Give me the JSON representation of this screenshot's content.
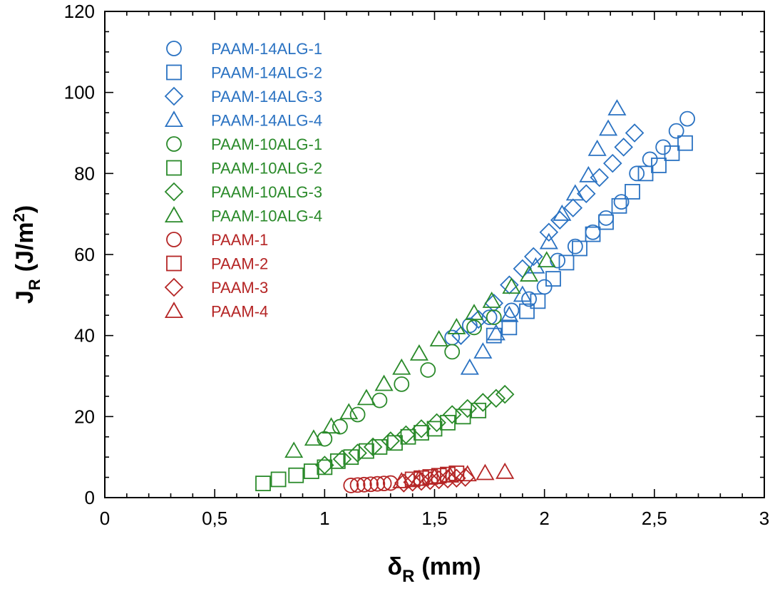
{
  "chart_data": {
    "type": "scatter",
    "xlabel": {
      "main": "δ",
      "sub": "R",
      "unit": "(mm)"
    },
    "ylabel": {
      "main": "J",
      "sub": "R",
      "unit": "(J/m",
      "sup": "2",
      "close": ")"
    },
    "xlim": [
      0,
      3
    ],
    "ylim": [
      0,
      120
    ],
    "x_ticks": [
      0,
      0.5,
      1,
      1.5,
      2,
      2.5,
      3
    ],
    "x_tick_labels": [
      "0",
      "0,5",
      "1",
      "1,5",
      "2",
      "2,5",
      "3"
    ],
    "y_ticks": [
      0,
      20,
      40,
      60,
      80,
      100,
      120
    ],
    "y_tick_labels": [
      "0",
      "20",
      "40",
      "60",
      "80",
      "100",
      "120"
    ],
    "grid": false,
    "legend_position": "top-left",
    "series": [
      {
        "name": "PAAM-14ALG-1",
        "marker": "circle",
        "color": "#2a72c2",
        "x": [
          1.58,
          1.66,
          1.75,
          1.85,
          1.93,
          2.0,
          2.06,
          2.14,
          2.22,
          2.28,
          2.35,
          2.42,
          2.48,
          2.54,
          2.6,
          2.65
        ],
        "y": [
          39.5,
          42.5,
          44.5,
          46.2,
          49.0,
          52.0,
          58.5,
          62.0,
          65.5,
          69.0,
          73.0,
          80.0,
          83.5,
          86.5,
          90.5,
          93.5
        ]
      },
      {
        "name": "PAAM-14ALG-2",
        "marker": "square",
        "color": "#2a72c2",
        "x": [
          1.77,
          1.84,
          1.92,
          1.97,
          2.04,
          2.1,
          2.16,
          2.22,
          2.28,
          2.34,
          2.4,
          2.46,
          2.52,
          2.58,
          2.64
        ],
        "y": [
          40.0,
          42.0,
          46.0,
          48.5,
          54.0,
          58.0,
          61.5,
          65.0,
          68.0,
          72.0,
          75.5,
          80.0,
          82.0,
          85.0,
          87.5
        ]
      },
      {
        "name": "PAAM-14ALG-3",
        "marker": "diamond",
        "color": "#2a72c2",
        "x": [
          1.62,
          1.7,
          1.77,
          1.84,
          1.9,
          1.95,
          2.02,
          2.07,
          2.13,
          2.19,
          2.25,
          2.31,
          2.36,
          2.41
        ],
        "y": [
          40.0,
          44.0,
          48.0,
          52.5,
          56.5,
          59.5,
          65.5,
          68.5,
          71.5,
          75.0,
          79.0,
          82.5,
          86.5,
          90.0
        ]
      },
      {
        "name": "PAAM-14ALG-4",
        "marker": "triangle",
        "color": "#2a72c2",
        "x": [
          1.66,
          1.72,
          1.78,
          1.84,
          1.9,
          1.96,
          2.02,
          2.08,
          2.14,
          2.2,
          2.24,
          2.29,
          2.33
        ],
        "y": [
          32.0,
          36.0,
          40.5,
          45.0,
          50.0,
          57.0,
          63.0,
          70.0,
          75.0,
          79.5,
          86.0,
          91.0,
          96.0
        ]
      },
      {
        "name": "PAAM-10ALG-1",
        "marker": "circle",
        "color": "#2a8a2a",
        "x": [
          1.0,
          1.07,
          1.15,
          1.25,
          1.35,
          1.47,
          1.58,
          1.68,
          1.77
        ],
        "y": [
          14.5,
          17.5,
          20.5,
          24.0,
          28.0,
          31.5,
          36.0,
          42.0,
          44.5
        ]
      },
      {
        "name": "PAAM-10ALG-2",
        "marker": "square",
        "color": "#2a8a2a",
        "x": [
          0.72,
          0.79,
          0.87,
          0.94,
          1.0,
          1.06,
          1.12,
          1.19,
          1.25,
          1.32,
          1.38,
          1.44,
          1.5,
          1.56,
          1.63,
          1.7
        ],
        "y": [
          3.5,
          4.5,
          5.5,
          6.5,
          7.5,
          9.0,
          10.0,
          11.5,
          12.5,
          13.5,
          15.0,
          16.0,
          17.0,
          18.5,
          20.0,
          21.5
        ]
      },
      {
        "name": "PAAM-10ALG-3",
        "marker": "diamond",
        "color": "#2a8a2a",
        "x": [
          1.0,
          1.08,
          1.15,
          1.22,
          1.3,
          1.37,
          1.44,
          1.51,
          1.58,
          1.65,
          1.72,
          1.78,
          1.82
        ],
        "y": [
          8.0,
          9.5,
          11.0,
          12.5,
          14.0,
          15.5,
          17.0,
          18.5,
          20.5,
          22.0,
          23.5,
          24.5,
          25.5
        ]
      },
      {
        "name": "PAAM-10ALG-4",
        "marker": "triangle",
        "color": "#2a8a2a",
        "x": [
          0.86,
          0.95,
          1.03,
          1.11,
          1.19,
          1.27,
          1.35,
          1.43,
          1.52,
          1.6,
          1.68,
          1.76,
          1.85,
          1.93,
          2.01
        ],
        "y": [
          11.5,
          14.5,
          17.5,
          21.0,
          24.5,
          28.0,
          32.0,
          35.5,
          39.0,
          42.0,
          45.5,
          48.5,
          52.0,
          55.0,
          58.5
        ]
      },
      {
        "name": "PAAM-1",
        "marker": "circle",
        "color": "#b52525",
        "x": [
          1.12,
          1.15,
          1.18,
          1.21,
          1.24,
          1.27,
          1.3
        ],
        "y": [
          3.0,
          3.1,
          3.2,
          3.3,
          3.4,
          3.5,
          3.6
        ]
      },
      {
        "name": "PAAM-2",
        "marker": "square",
        "color": "#b52525",
        "x": [
          1.4,
          1.44,
          1.48,
          1.52,
          1.56,
          1.6
        ],
        "y": [
          4.5,
          4.8,
          5.1,
          5.4,
          5.7,
          6.0
        ]
      },
      {
        "name": "PAAM-3",
        "marker": "diamond",
        "color": "#b52525",
        "x": [
          1.36,
          1.4,
          1.44,
          1.48,
          1.52,
          1.56,
          1.6,
          1.64
        ],
        "y": [
          3.6,
          3.8,
          4.0,
          4.2,
          4.4,
          4.6,
          4.8,
          5.0
        ]
      },
      {
        "name": "PAAM-4",
        "marker": "triangle",
        "color": "#b52525",
        "x": [
          1.35,
          1.43,
          1.5,
          1.57,
          1.65,
          1.73,
          1.82
        ],
        "y": [
          4.0,
          4.6,
          5.0,
          5.4,
          5.7,
          6.0,
          6.3
        ]
      }
    ]
  }
}
